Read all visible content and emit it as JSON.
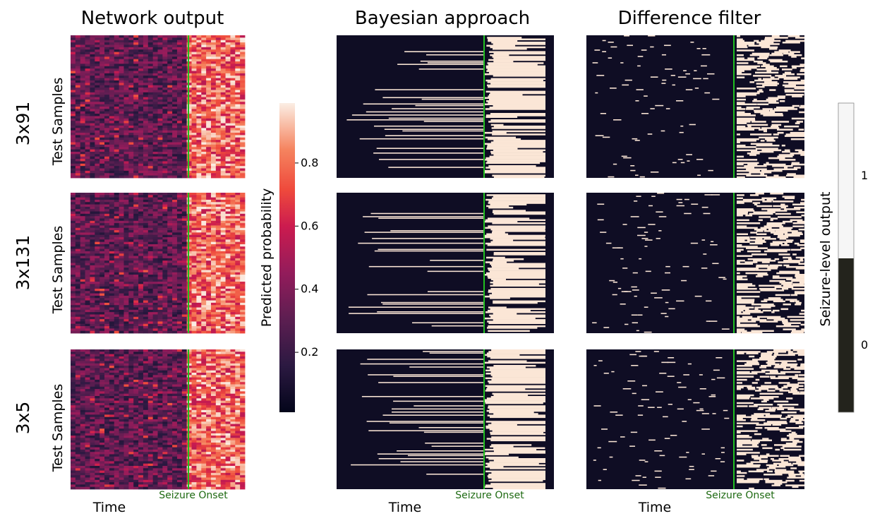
{
  "chart_data": {
    "type": "heatmap",
    "columns": [
      {
        "title": "Network output",
        "mode": "continuous"
      },
      {
        "title": "Bayesian approach",
        "mode": "binary-bayes"
      },
      {
        "title": "Difference filter",
        "mode": "binary-diff"
      }
    ],
    "rows": [
      {
        "label": "3x91",
        "ylabel": "Test Samples"
      },
      {
        "label": "3x131",
        "ylabel": "Test Samples"
      },
      {
        "label": "3x5",
        "ylabel": "Test Samples"
      }
    ],
    "xlabel": "Time",
    "annotation": "Seizure Onset",
    "onset_fraction": 0.85,
    "colorbar_continuous": {
      "label": "Predicted probability",
      "ticks": [
        0.2,
        0.4,
        0.6,
        0.8
      ],
      "range": [
        0.01,
        0.99
      ],
      "colormap": "rocket"
    },
    "colorbar_binary": {
      "label": "Seizure-level output",
      "ticks": [
        0,
        1
      ],
      "colors": {
        "0": "#23231c",
        "1": "#f6f6f6"
      }
    },
    "colors": {
      "onset_line": "#20c020",
      "binary_low": "#0f0d24",
      "binary_high": "#fbe6d6"
    }
  }
}
